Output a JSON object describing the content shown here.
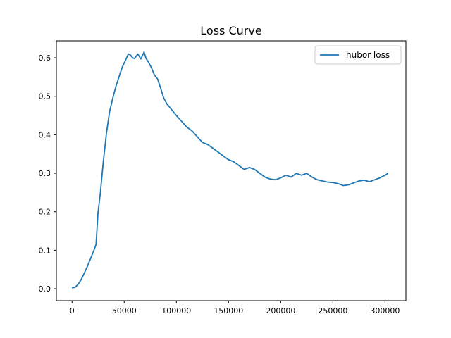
{
  "chart_data": {
    "type": "line",
    "title": "Loss Curve",
    "xlabel": "",
    "ylabel": "",
    "xlim": [
      -15000,
      320000
    ],
    "ylim": [
      -0.031,
      0.644
    ],
    "x_ticks": [
      0,
      50000,
      100000,
      150000,
      200000,
      250000,
      300000
    ],
    "x_tick_labels": [
      "0",
      "50000",
      "100000",
      "150000",
      "200000",
      "250000",
      "300000"
    ],
    "y_ticks": [
      0.0,
      0.1,
      0.2,
      0.3,
      0.4,
      0.5,
      0.6
    ],
    "y_tick_labels": [
      "0.0",
      "0.1",
      "0.2",
      "0.3",
      "0.4",
      "0.5",
      "0.6"
    ],
    "grid": false,
    "legend_position": "top-right",
    "series": [
      {
        "name": "hubor loss",
        "color": "#1f77b4",
        "x": [
          0,
          3000,
          6000,
          9000,
          12000,
          15000,
          18000,
          21000,
          23000,
          25000,
          27000,
          30000,
          33000,
          36000,
          39000,
          42000,
          45000,
          48000,
          51000,
          54000,
          56000,
          58000,
          60000,
          63000,
          66000,
          69000,
          71000,
          73000,
          76000,
          79000,
          82000,
          85000,
          88000,
          91000,
          94000,
          97000,
          100000,
          105000,
          110000,
          115000,
          120000,
          125000,
          130000,
          135000,
          140000,
          145000,
          150000,
          155000,
          160000,
          165000,
          170000,
          175000,
          180000,
          185000,
          190000,
          195000,
          200000,
          205000,
          210000,
          215000,
          220000,
          225000,
          230000,
          235000,
          240000,
          245000,
          250000,
          255000,
          260000,
          265000,
          270000,
          275000,
          280000,
          285000,
          290000,
          295000,
          300000,
          303000
        ],
        "y": [
          0.002,
          0.004,
          0.012,
          0.025,
          0.042,
          0.06,
          0.08,
          0.1,
          0.115,
          0.2,
          0.245,
          0.33,
          0.405,
          0.46,
          0.495,
          0.525,
          0.55,
          0.575,
          0.592,
          0.61,
          0.607,
          0.6,
          0.598,
          0.61,
          0.597,
          0.615,
          0.598,
          0.59,
          0.575,
          0.555,
          0.545,
          0.52,
          0.495,
          0.48,
          0.47,
          0.46,
          0.45,
          0.435,
          0.42,
          0.41,
          0.395,
          0.38,
          0.375,
          0.365,
          0.355,
          0.345,
          0.335,
          0.33,
          0.32,
          0.31,
          0.315,
          0.31,
          0.3,
          0.29,
          0.285,
          0.283,
          0.288,
          0.295,
          0.29,
          0.3,
          0.295,
          0.3,
          0.29,
          0.283,
          0.28,
          0.277,
          0.276,
          0.273,
          0.268,
          0.27,
          0.275,
          0.28,
          0.282,
          0.278,
          0.283,
          0.288,
          0.295,
          0.3
        ]
      }
    ]
  }
}
